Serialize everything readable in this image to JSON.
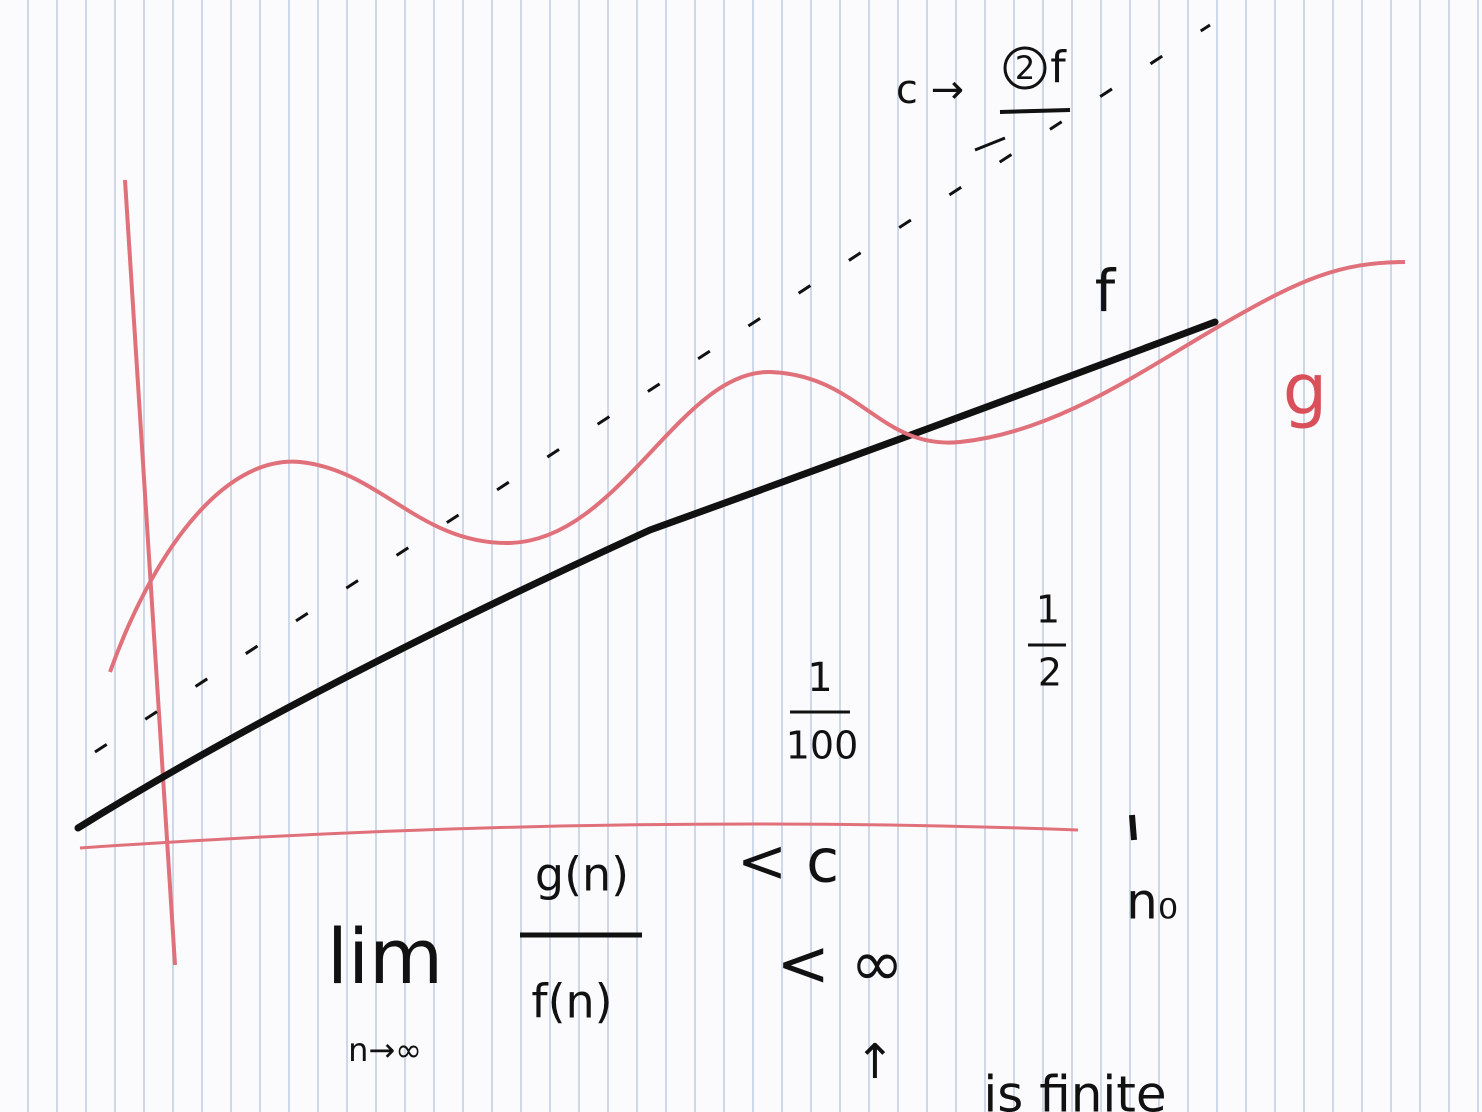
{
  "labels": {
    "c_arrow": "c →",
    "c_multiplier": "2",
    "c_function": "f",
    "f_curve": "f",
    "g_curve": "g"
  },
  "fractions": [
    {
      "numerator": "1",
      "denominator": "100"
    },
    {
      "numerator": "1",
      "denominator": "2"
    }
  ],
  "threshold": "n₀",
  "formula": {
    "lim": "lim",
    "limit_subscript": "n→∞",
    "numerator": "g(n)",
    "denominator": "f(n)",
    "upper_relation": "< c",
    "lower_relation": "< ∞",
    "note_arrow": "↑",
    "note": "is finite"
  }
}
